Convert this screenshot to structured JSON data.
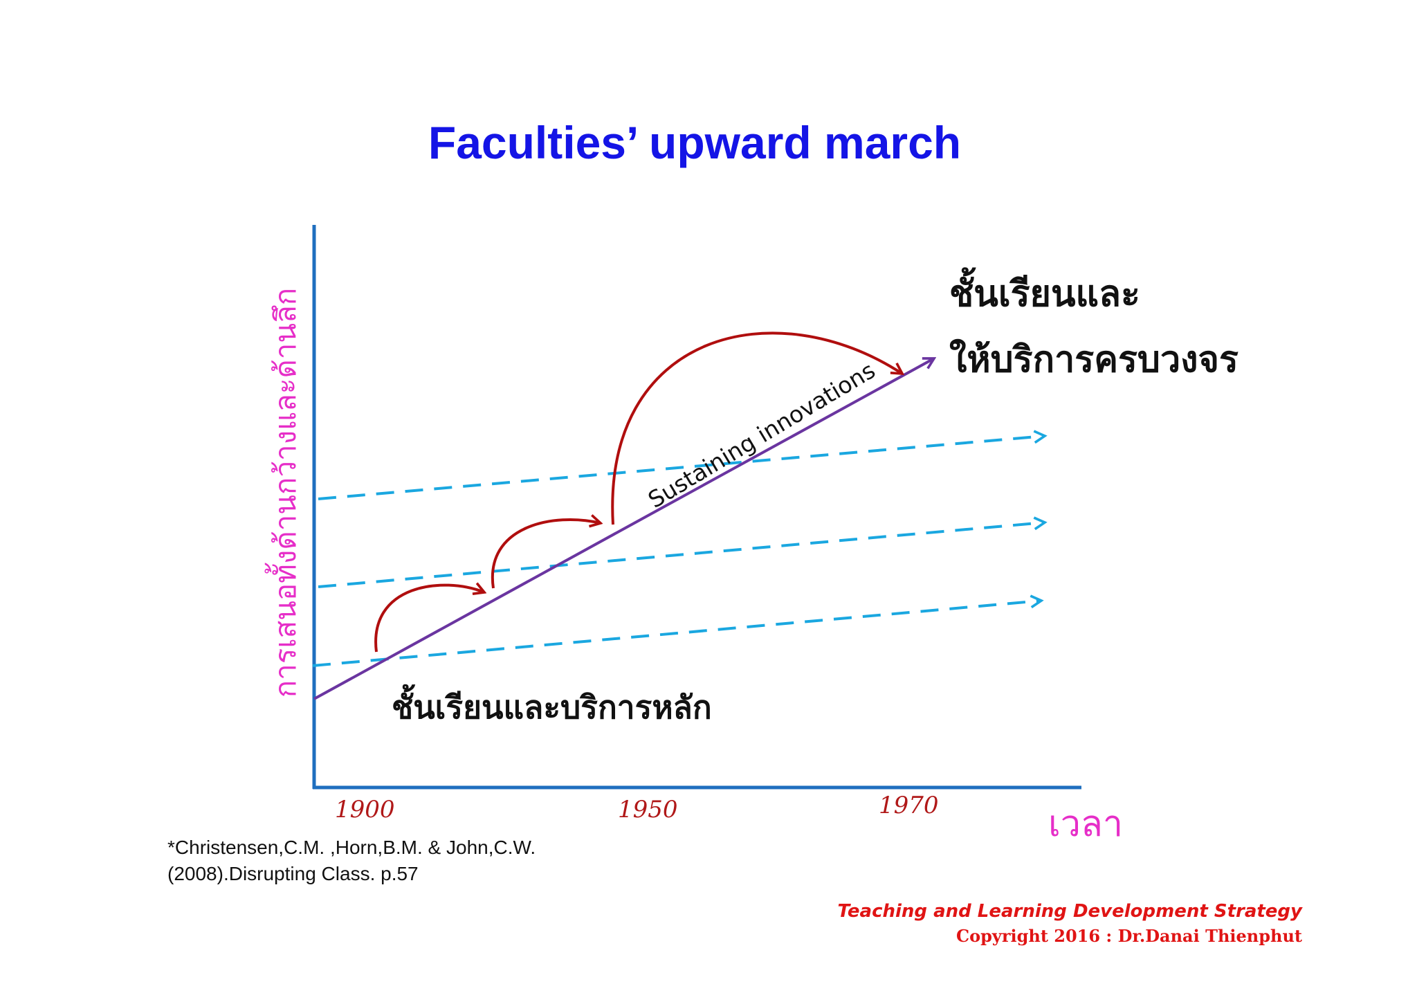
{
  "title": "Faculties’ upward march",
  "y_axis_label": "การเสนอทั้งด้านกว้างและด้านลึก",
  "x_axis_label": "เวลา",
  "x_ticks": [
    "1900",
    "1950",
    "1970"
  ],
  "top_label": {
    "line1": "ชั้นเรียนและ",
    "line2": "ให้บริการครบวงจร"
  },
  "bottom_label": "ชั้นเรียนและบริการหลัก",
  "trend_label": "Sustaining innovations",
  "citation": {
    "line1": "*Christensen,C.M. ,Horn,B.M. & John,C.W.",
    "line2": "(2008).Disrupting Class.  p.57"
  },
  "credit": {
    "line1": "Teaching and Learning  Development Strategy",
    "line2": "Copyright  2016 : Dr.Danai  Thienphut"
  },
  "colors": {
    "title": "#1414e6",
    "axes": "#1f6fbf",
    "main_arrow": "#6a35a0",
    "dashed_arrows": "#1aa7e0",
    "jump_arrows": "#b00e0e",
    "axis_labels": "#e62ec8",
    "credit": "#e01414"
  }
}
